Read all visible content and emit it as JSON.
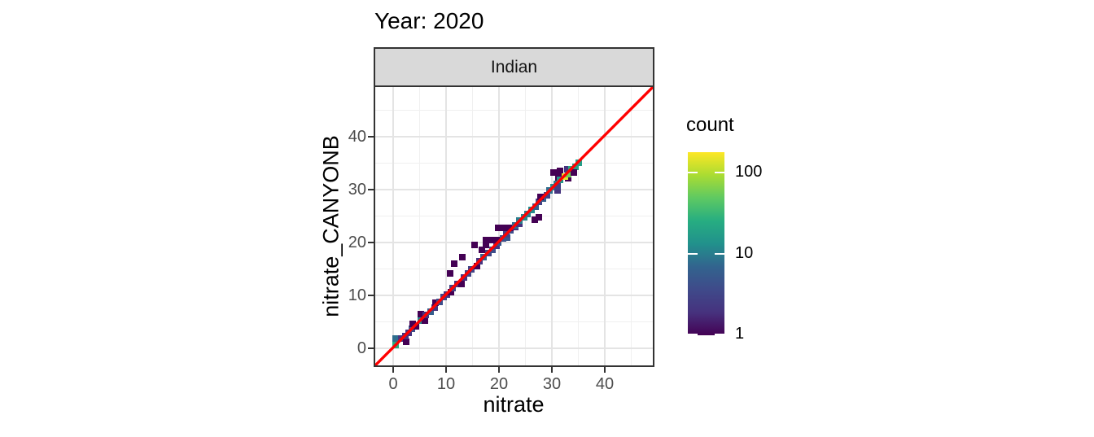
{
  "title": "Year: 2020",
  "facet": {
    "label": "Indian"
  },
  "axes": {
    "x_title": "nitrate",
    "y_title": "nitrate_CANYONB",
    "x_ticks": [
      0,
      10,
      20,
      30,
      40
    ],
    "y_ticks": [
      0,
      10,
      20,
      30,
      40
    ]
  },
  "legend": {
    "title": "count",
    "ticks": [
      100,
      10,
      1
    ],
    "scale": "log10",
    "palette": "viridis"
  },
  "colors": {
    "reference_line": "#ff0000",
    "strip_background": "#d9d9d9",
    "panel_border": "#333333",
    "grid_major": "#e4e4e4",
    "grid_minor": "#f0f0f0",
    "tick_label": "#4d4d4d",
    "viridis_stops": [
      "#440154",
      "#46327e",
      "#3f4a8a",
      "#32648e",
      "#21918c",
      "#27ad81",
      "#5ec962",
      "#aadc32",
      "#fde725"
    ]
  },
  "chart_data": {
    "type": "heatmap",
    "subtype": "bin2d",
    "title": "Year: 2020",
    "facet": "Indian",
    "xlabel": "nitrate",
    "ylabel": "nitrate_CANYONB",
    "xlim": [
      -3.5,
      49
    ],
    "ylim": [
      -3.5,
      49
    ],
    "x_ticks": [
      0,
      10,
      20,
      30,
      40
    ],
    "y_ticks": [
      0,
      10,
      20,
      30,
      40
    ],
    "grid": true,
    "binwidth": 1.2,
    "count_scale": {
      "type": "log10",
      "range": [
        1,
        180
      ],
      "legend_ticks": [
        100,
        10,
        1
      ]
    },
    "reference_line": {
      "equation": "y = x",
      "color": "#ff0000"
    },
    "bins_format": [
      "x_center",
      "y_center",
      "count"
    ],
    "bins": [
      [
        0.4,
        0.6,
        25
      ],
      [
        0.4,
        1.8,
        8
      ],
      [
        1.6,
        1.8,
        2
      ],
      [
        2.4,
        1.2,
        1
      ],
      [
        2.3,
        2.3,
        2
      ],
      [
        2.9,
        3.0,
        2
      ],
      [
        3.6,
        3.7,
        4
      ],
      [
        4.3,
        4.2,
        1
      ],
      [
        3.7,
        4.6,
        1
      ],
      [
        5.2,
        5.2,
        12
      ],
      [
        6.0,
        5.3,
        1
      ],
      [
        5.2,
        6.4,
        1
      ],
      [
        6.2,
        6.3,
        2
      ],
      [
        7.0,
        7.0,
        6
      ],
      [
        7.9,
        7.7,
        2
      ],
      [
        8.0,
        8.6,
        1
      ],
      [
        8.8,
        8.8,
        4
      ],
      [
        9.6,
        9.7,
        3
      ],
      [
        10.2,
        10.2,
        2
      ],
      [
        10.9,
        10.6,
        1
      ],
      [
        11.3,
        11.4,
        3
      ],
      [
        12.1,
        12.1,
        2
      ],
      [
        12.9,
        12.2,
        1
      ],
      [
        13.4,
        13.4,
        2
      ],
      [
        14.1,
        14.2,
        3
      ],
      [
        14.8,
        15.0,
        3
      ],
      [
        15.9,
        15.5,
        1
      ],
      [
        16.3,
        16.4,
        2
      ],
      [
        17.1,
        17.3,
        6
      ],
      [
        18.0,
        18.0,
        3
      ],
      [
        18.7,
        18.6,
        4
      ],
      [
        19.5,
        19.4,
        2
      ],
      [
        19.9,
        20.0,
        5
      ],
      [
        20.7,
        20.7,
        4
      ],
      [
        21.5,
        21.0,
        5
      ],
      [
        21.4,
        21.6,
        3
      ],
      [
        22.2,
        22.3,
        4
      ],
      [
        10.7,
        14.2,
        1
      ],
      [
        11.6,
        16.0,
        1
      ],
      [
        13.0,
        17.2,
        1
      ],
      [
        15.4,
        19.6,
        1
      ],
      [
        16.8,
        18.6,
        1
      ],
      [
        17.6,
        19.6,
        1
      ],
      [
        17.6,
        20.5,
        1
      ],
      [
        18.6,
        20.4,
        1
      ],
      [
        19.6,
        20.4,
        1
      ],
      [
        19.8,
        22.7,
        1
      ],
      [
        21.0,
        22.7,
        1
      ],
      [
        22.1,
        22.8,
        1
      ],
      [
        23.1,
        22.9,
        2
      ],
      [
        23.0,
        23.3,
        8
      ],
      [
        23.8,
        23.6,
        2
      ],
      [
        23.9,
        24.2,
        10
      ],
      [
        24.7,
        24.8,
        12
      ],
      [
        25.4,
        25.4,
        10
      ],
      [
        26.2,
        26.1,
        12
      ],
      [
        26.9,
        26.7,
        6
      ],
      [
        26.8,
        24.3,
        1
      ],
      [
        27.6,
        24.7,
        1
      ],
      [
        27.6,
        27.7,
        3
      ],
      [
        28.3,
        28.3,
        6
      ],
      [
        27.9,
        28.6,
        1
      ],
      [
        29.0,
        28.9,
        3
      ],
      [
        29.6,
        29.8,
        8
      ],
      [
        30.3,
        30.4,
        12
      ],
      [
        31.0,
        29.9,
        2
      ],
      [
        30.9,
        31.1,
        10
      ],
      [
        31.0,
        30.6,
        3
      ],
      [
        30.3,
        33.3,
        1
      ],
      [
        31.3,
        32.3,
        1
      ],
      [
        31.6,
        33.5,
        1
      ],
      [
        31.6,
        31.8,
        15
      ],
      [
        33.1,
        32.2,
        1
      ],
      [
        32.4,
        32.4,
        150
      ],
      [
        33.0,
        33.0,
        60
      ],
      [
        32.9,
        33.8,
        2
      ],
      [
        33.7,
        33.9,
        25
      ],
      [
        34.4,
        34.3,
        20
      ],
      [
        34.2,
        33.3,
        1
      ],
      [
        35.0,
        35.1,
        18
      ]
    ]
  }
}
